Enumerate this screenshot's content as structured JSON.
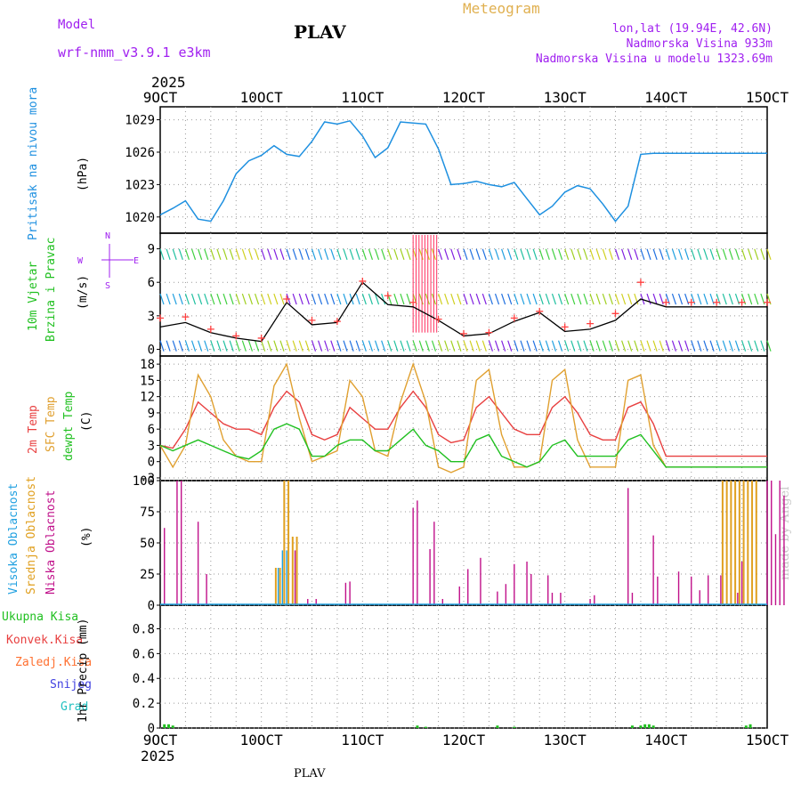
{
  "header": {
    "model_label": "Model",
    "model_name": "wrf-nmm_v3.9.1  e3km",
    "title": "PLAV",
    "meteogram_label": "Meteogram",
    "coords": "lon,lat (19.94E, 42.6N)",
    "elevation": "Nadmorska Visina 933m",
    "model_elevation": "Nadmorska Visina u modelu 1323.69m",
    "year_top": "2025",
    "year_bottom": "2025",
    "footer_station": "PLAV",
    "credit": "made by Angel"
  },
  "time_axis": {
    "ticks": [
      "9OCT",
      "10OCT",
      "11OCT",
      "12OCT",
      "13OCT",
      "14OCT",
      "15OCT"
    ]
  },
  "panels": {
    "pressure": {
      "label": "Pritisak na nivou mora",
      "unit": "(hPa)",
      "color": "#1e90e0"
    },
    "wind": {
      "label1": "10m Vjetar",
      "label2": "Brzina i Pravac",
      "unit": "(m/s)",
      "compass_n": "N",
      "compass_s": "S",
      "compass_w": "W",
      "compass_e": "E"
    },
    "temp": {
      "label_2m": "2m Temp",
      "label_sfc": "SFC Temp",
      "label_dew": "dewpt Temp",
      "unit": "(C)"
    },
    "cloud": {
      "label_high": "Visoka Oblacnost",
      "label_mid": "Srednja Oblacnost",
      "label_low": "Niska Oblacnost",
      "unit": "(%)"
    },
    "precip": {
      "legend": [
        "Ukupna Kisa",
        "Konvek.Kisa",
        "Zaledj.Kisa",
        "Snijeg",
        "Grad"
      ],
      "unit": "1hr Precip (mm)"
    }
  },
  "colors": {
    "pressure": "#1e90e0",
    "temp2m": "#e84040",
    "sfc": "#e0a030",
    "dew": "#20c020",
    "high_cloud": "#20a0e0",
    "mid_cloud": "#e0a020",
    "low_cloud": "#c0108a",
    "wind_obs": "#ff4040",
    "purple": "#a020f0"
  },
  "chart_data": [
    {
      "type": "line",
      "title": "Pritisak na nivou mora",
      "ylabel": "(hPa)",
      "ylim": [
        1018.5,
        1030.2
      ],
      "yticks": [
        1020,
        1023,
        1026,
        1029
      ],
      "x_hours": [
        0,
        3,
        6,
        9,
        12,
        15,
        18,
        21,
        24,
        27,
        30,
        33,
        36,
        39,
        42,
        45,
        48,
        51,
        54,
        57,
        60,
        63,
        66,
        69,
        72,
        75,
        78,
        81,
        84,
        87,
        90,
        93,
        96,
        99,
        102,
        105,
        108,
        111,
        114,
        117,
        120,
        123,
        126,
        129,
        132,
        135,
        138,
        141,
        144
      ],
      "values": [
        1020.2,
        1020.8,
        1021.5,
        1019.8,
        1019.6,
        1021.5,
        1024.0,
        1025.2,
        1025.7,
        1026.6,
        1025.8,
        1025.6,
        1027.0,
        1028.8,
        1028.6,
        1028.9,
        1027.5,
        1025.5,
        1026.4,
        1028.8,
        1028.7,
        1028.6,
        1026.3,
        1023.0,
        1023.1,
        1023.3,
        1023.0,
        1022.8,
        1023.2,
        1021.7,
        1020.2,
        1021.0,
        1022.3,
        1022.9,
        1022.6,
        1021.2,
        1019.6,
        1021.0,
        1025.8,
        1025.9,
        1025.9,
        1025.9,
        1025.9,
        1025.9,
        1025.9,
        1025.9,
        1025.9,
        1025.9,
        1025.9
      ]
    },
    {
      "type": "line",
      "title": "10m Vjetar Brzina i Pravac",
      "ylabel": "(m/s)",
      "ylim": [
        -0.6,
        10.4
      ],
      "yticks": [
        0,
        3,
        6,
        9
      ],
      "series": [
        {
          "name": "speed",
          "x_hours": [
            0,
            6,
            12,
            18,
            24,
            30,
            36,
            42,
            48,
            54,
            60,
            66,
            72,
            78,
            84,
            90,
            96,
            102,
            108,
            114,
            120,
            126,
            132,
            138,
            144
          ],
          "values": [
            2.0,
            2.4,
            1.5,
            1.0,
            0.7,
            4.2,
            2.2,
            2.4,
            6.0,
            4.0,
            3.8,
            2.6,
            1.2,
            1.4,
            2.5,
            3.3,
            1.6,
            1.8,
            2.6,
            4.5,
            3.8,
            3.8,
            3.8,
            3.8,
            3.8
          ]
        },
        {
          "name": "gust",
          "x_hours": [
            0,
            6,
            12,
            18,
            24,
            30,
            36,
            42,
            48,
            54,
            60,
            66,
            72,
            78,
            84,
            90,
            96,
            102,
            108,
            114,
            120,
            126,
            132,
            138,
            144
          ],
          "values": [
            2.8,
            2.9,
            1.8,
            1.2,
            1.0,
            4.5,
            2.6,
            2.5,
            6.1,
            4.8,
            4.2,
            2.7,
            1.4,
            1.5,
            2.8,
            3.4,
            2.0,
            2.3,
            3.2,
            6.0,
            4.2,
            4.2,
            4.2,
            4.2,
            4.2
          ]
        }
      ]
    },
    {
      "type": "line",
      "title": "Temperature",
      "ylabel": "(C)",
      "ylim": [
        -3.5,
        19.5
      ],
      "yticks": [
        -3,
        0,
        3,
        6,
        9,
        12,
        15,
        18
      ],
      "x_hours": [
        0,
        3,
        6,
        9,
        12,
        15,
        18,
        21,
        24,
        27,
        30,
        33,
        36,
        39,
        42,
        45,
        48,
        51,
        54,
        57,
        60,
        63,
        66,
        69,
        72,
        75,
        78,
        81,
        84,
        87,
        90,
        93,
        96,
        99,
        102,
        105,
        108,
        111,
        114,
        117,
        120,
        123,
        126,
        129,
        132,
        135,
        138,
        141,
        144
      ],
      "series": [
        {
          "name": "2m Temp",
          "values": [
            3,
            2.5,
            6,
            11,
            9,
            7,
            6,
            6,
            5,
            10,
            13,
            11,
            5,
            4,
            5,
            10,
            8,
            6,
            6,
            10,
            13,
            10,
            5,
            3.5,
            4,
            10,
            12,
            9,
            6,
            5,
            5,
            10,
            12,
            9,
            5,
            4,
            4,
            10,
            11,
            7,
            1,
            1,
            1,
            1,
            1,
            1,
            1,
            1,
            1
          ]
        },
        {
          "name": "SFC Temp",
          "values": [
            3,
            -1,
            3,
            16,
            12,
            4,
            1,
            0,
            0,
            14,
            18,
            8,
            0,
            1,
            2,
            15,
            12,
            2,
            1,
            11,
            18,
            11,
            -1,
            -2,
            -1,
            15,
            17,
            5,
            -1,
            -1,
            0,
            15,
            17,
            4,
            -1,
            -1,
            -1,
            15,
            16,
            3,
            -1,
            -1,
            -1,
            -1,
            -1,
            -1,
            -1,
            -1,
            -1
          ]
        },
        {
          "name": "dewpt Temp",
          "values": [
            3,
            2,
            3,
            4,
            3,
            2,
            1,
            0.5,
            2,
            6,
            7,
            6,
            1,
            1,
            3,
            4,
            4,
            2,
            2,
            4,
            6,
            3,
            2,
            0,
            0,
            4,
            5,
            1,
            0,
            -1,
            0,
            3,
            4,
            1,
            1,
            1,
            1,
            4,
            5,
            2,
            -1,
            -1,
            -1,
            -1,
            -1,
            -1,
            -1,
            -1,
            -1
          ]
        }
      ]
    },
    {
      "type": "bar",
      "title": "Oblacnost",
      "ylabel": "(%)",
      "ylim": [
        0,
        100
      ],
      "yticks": [
        0,
        25,
        50,
        75,
        100
      ],
      "series": [
        {
          "name": "Niska Oblacnost",
          "x_hours": [
            1,
            4,
            5,
            9,
            11,
            32,
            35,
            37,
            44,
            45,
            60,
            61,
            64,
            65,
            67,
            71,
            73,
            76,
            80,
            82,
            84,
            87,
            88,
            92,
            93,
            95,
            102,
            103,
            111,
            112,
            117,
            118,
            123,
            126,
            128,
            130,
            133,
            137,
            138,
            144,
            145,
            146,
            147,
            148
          ],
          "values": [
            62,
            100,
            100,
            67,
            25,
            44,
            5,
            5,
            18,
            19,
            78,
            84,
            45,
            67,
            5,
            15,
            29,
            38,
            11,
            17,
            33,
            35,
            25,
            24,
            10,
            10,
            5,
            8,
            94,
            10,
            56,
            23,
            27,
            23,
            12,
            24,
            24,
            10,
            35,
            100,
            100,
            57,
            100,
            88
          ]
        },
        {
          "name": "Srednja Oblacnost",
          "x_hours": [
            27,
            28,
            29,
            30,
            31,
            32,
            133,
            134,
            135,
            136,
            137,
            138,
            139,
            140,
            141
          ],
          "values": [
            30,
            30,
            100,
            100,
            55,
            55,
            100,
            100,
            100,
            100,
            100,
            100,
            100,
            100,
            100
          ]
        },
        {
          "name": "Visoka Oblacnost",
          "x_hours": [
            28,
            29,
            30
          ],
          "values": [
            30,
            44,
            44
          ]
        }
      ]
    },
    {
      "type": "bar",
      "title": "1hr Precip",
      "ylabel": "1hr Precip (mm)",
      "ylim": [
        0,
        0.99
      ],
      "yticks": [
        0,
        0.2,
        0.4,
        0.6,
        0.8
      ],
      "series": [
        {
          "name": "Ukupna Kisa",
          "x_hours": [
            1,
            2,
            3,
            61,
            63,
            80,
            84,
            112,
            114,
            115,
            116,
            117,
            139,
            140
          ],
          "values": [
            0.03,
            0.03,
            0.02,
            0.02,
            0.01,
            0.02,
            0.01,
            0.02,
            0.02,
            0.03,
            0.03,
            0.02,
            0.02,
            0.03
          ]
        }
      ]
    }
  ]
}
